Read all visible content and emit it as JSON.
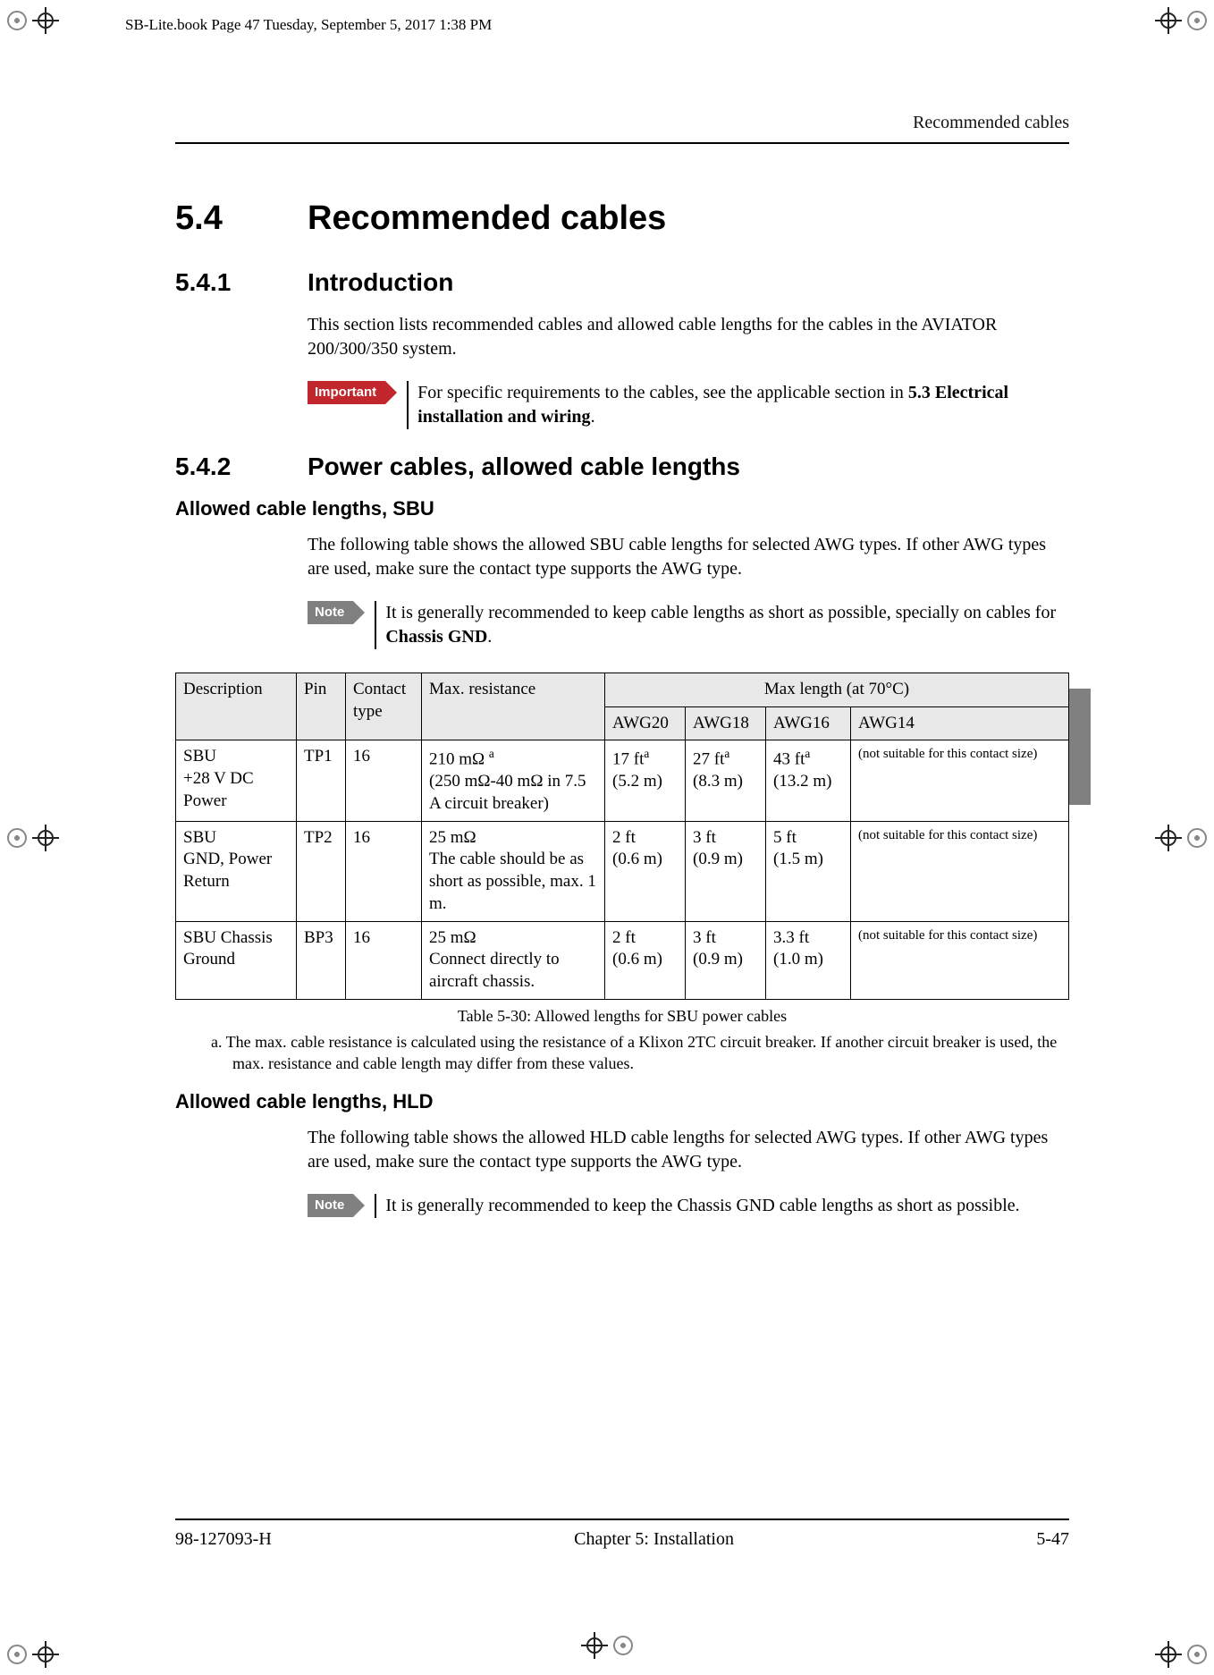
{
  "meta_line": "SB-Lite.book  Page 47  Tuesday, September 5, 2017  1:38 PM",
  "running_head": "Recommended cables",
  "section": {
    "num": "5.4",
    "title": "Recommended cables"
  },
  "sub1": {
    "num": "5.4.1",
    "title": "Introduction"
  },
  "intro_p": "This section lists recommended cables and allowed cable lengths for the cables in the AVIATOR 200/300/350 system.",
  "important_label": "Important",
  "important_text_a": "For specific requirements to the cables, see the applicable section in ",
  "important_text_b": "5.3 Electrical installation and wiring",
  "important_text_c": ".",
  "sub2": {
    "num": "5.4.2",
    "title": "Power cables, allowed cable lengths"
  },
  "sbu_h": "Allowed cable lengths, SBU",
  "sbu_p": "The following table shows the allowed SBU cable lengths for selected AWG types. If other AWG types are used, make sure the contact type supports the AWG type.",
  "note_label": "Note",
  "note1_a": "It is generally recommended to keep cable lengths as short as possible, specially on cables for ",
  "note1_b": "Chassis GND",
  "note1_c": ".",
  "th": {
    "desc": "Description",
    "pin": "Pin",
    "contact": "Contact type",
    "maxres": "Max. resistance",
    "maxlen": "Max length (at 70°C)",
    "awg20": "AWG20",
    "awg18": "AWG18",
    "awg16": "AWG16",
    "awg14": "AWG14"
  },
  "rows": [
    {
      "desc_l1": "SBU",
      "desc_l2": "+28 V DC Power",
      "pin": "TP1",
      "contact": "16",
      "res_l1": "210 mΩ ",
      "res_sup": "a",
      "res_l2": "(250 mΩ-40 mΩ in 7.5 A circuit breaker)",
      "awg20_l1": "17 ft",
      "awg20_sup": "a",
      "awg20_l2": "(5.2 m)",
      "awg18_l1": "27 ft",
      "awg18_sup": "a",
      "awg18_l2": "(8.3 m)",
      "awg16_l1": "43 ft",
      "awg16_sup": "a",
      "awg16_l2": "(13.2 m)",
      "awg14": "(not suitable for this contact size)"
    },
    {
      "desc_l1": "SBU",
      "desc_l2": "GND, Power Return",
      "pin": "TP2",
      "contact": "16",
      "res_l1": "25 mΩ",
      "res_sup": "",
      "res_l2": "The cable should be as short as possible, max. 1 m.",
      "awg20_l1": "2 ft",
      "awg20_sup": "",
      "awg20_l2": "(0.6 m)",
      "awg18_l1": "3 ft",
      "awg18_sup": "",
      "awg18_l2": "(0.9 m)",
      "awg16_l1": "5 ft",
      "awg16_sup": "",
      "awg16_l2": "(1.5 m)",
      "awg14": "(not suitable for this contact size)"
    },
    {
      "desc_l1": "SBU Chassis Ground",
      "desc_l2": "",
      "pin": "BP3",
      "contact": "16",
      "res_l1": "25 mΩ",
      "res_sup": "",
      "res_l2": "Connect directly to aircraft chassis.",
      "awg20_l1": "2 ft",
      "awg20_sup": "",
      "awg20_l2": "(0.6 m)",
      "awg18_l1": "3 ft",
      "awg18_sup": "",
      "awg18_l2": "(0.9 m)",
      "awg16_l1": "3.3 ft",
      "awg16_sup": "",
      "awg16_l2": "(1.0 m)",
      "awg14": "(not suitable for this contact size)"
    }
  ],
  "table_caption": "Table 5-30: Allowed lengths for SBU power cables",
  "footnote_a": "a.   The max. cable resistance is calculated using the resistance of a Klixon 2TC circuit breaker. If another circuit breaker is used, the max. resistance and cable length may differ from these values.",
  "hld_h": "Allowed cable lengths, HLD",
  "hld_p": "The following table shows the allowed HLD cable lengths for selected AWG types. If other AWG types are used, make sure the contact type supports the AWG type.",
  "note2": "It is generally recommended to keep the Chassis GND cable lengths as short as possible.",
  "footer": {
    "left": "98-127093-H",
    "center": "Chapter 5:  Installation",
    "right": "5-47"
  },
  "colors": {
    "important": "#c1272d",
    "note": "#808080",
    "th_bg": "#e8e8e8",
    "tab": "#808080"
  }
}
